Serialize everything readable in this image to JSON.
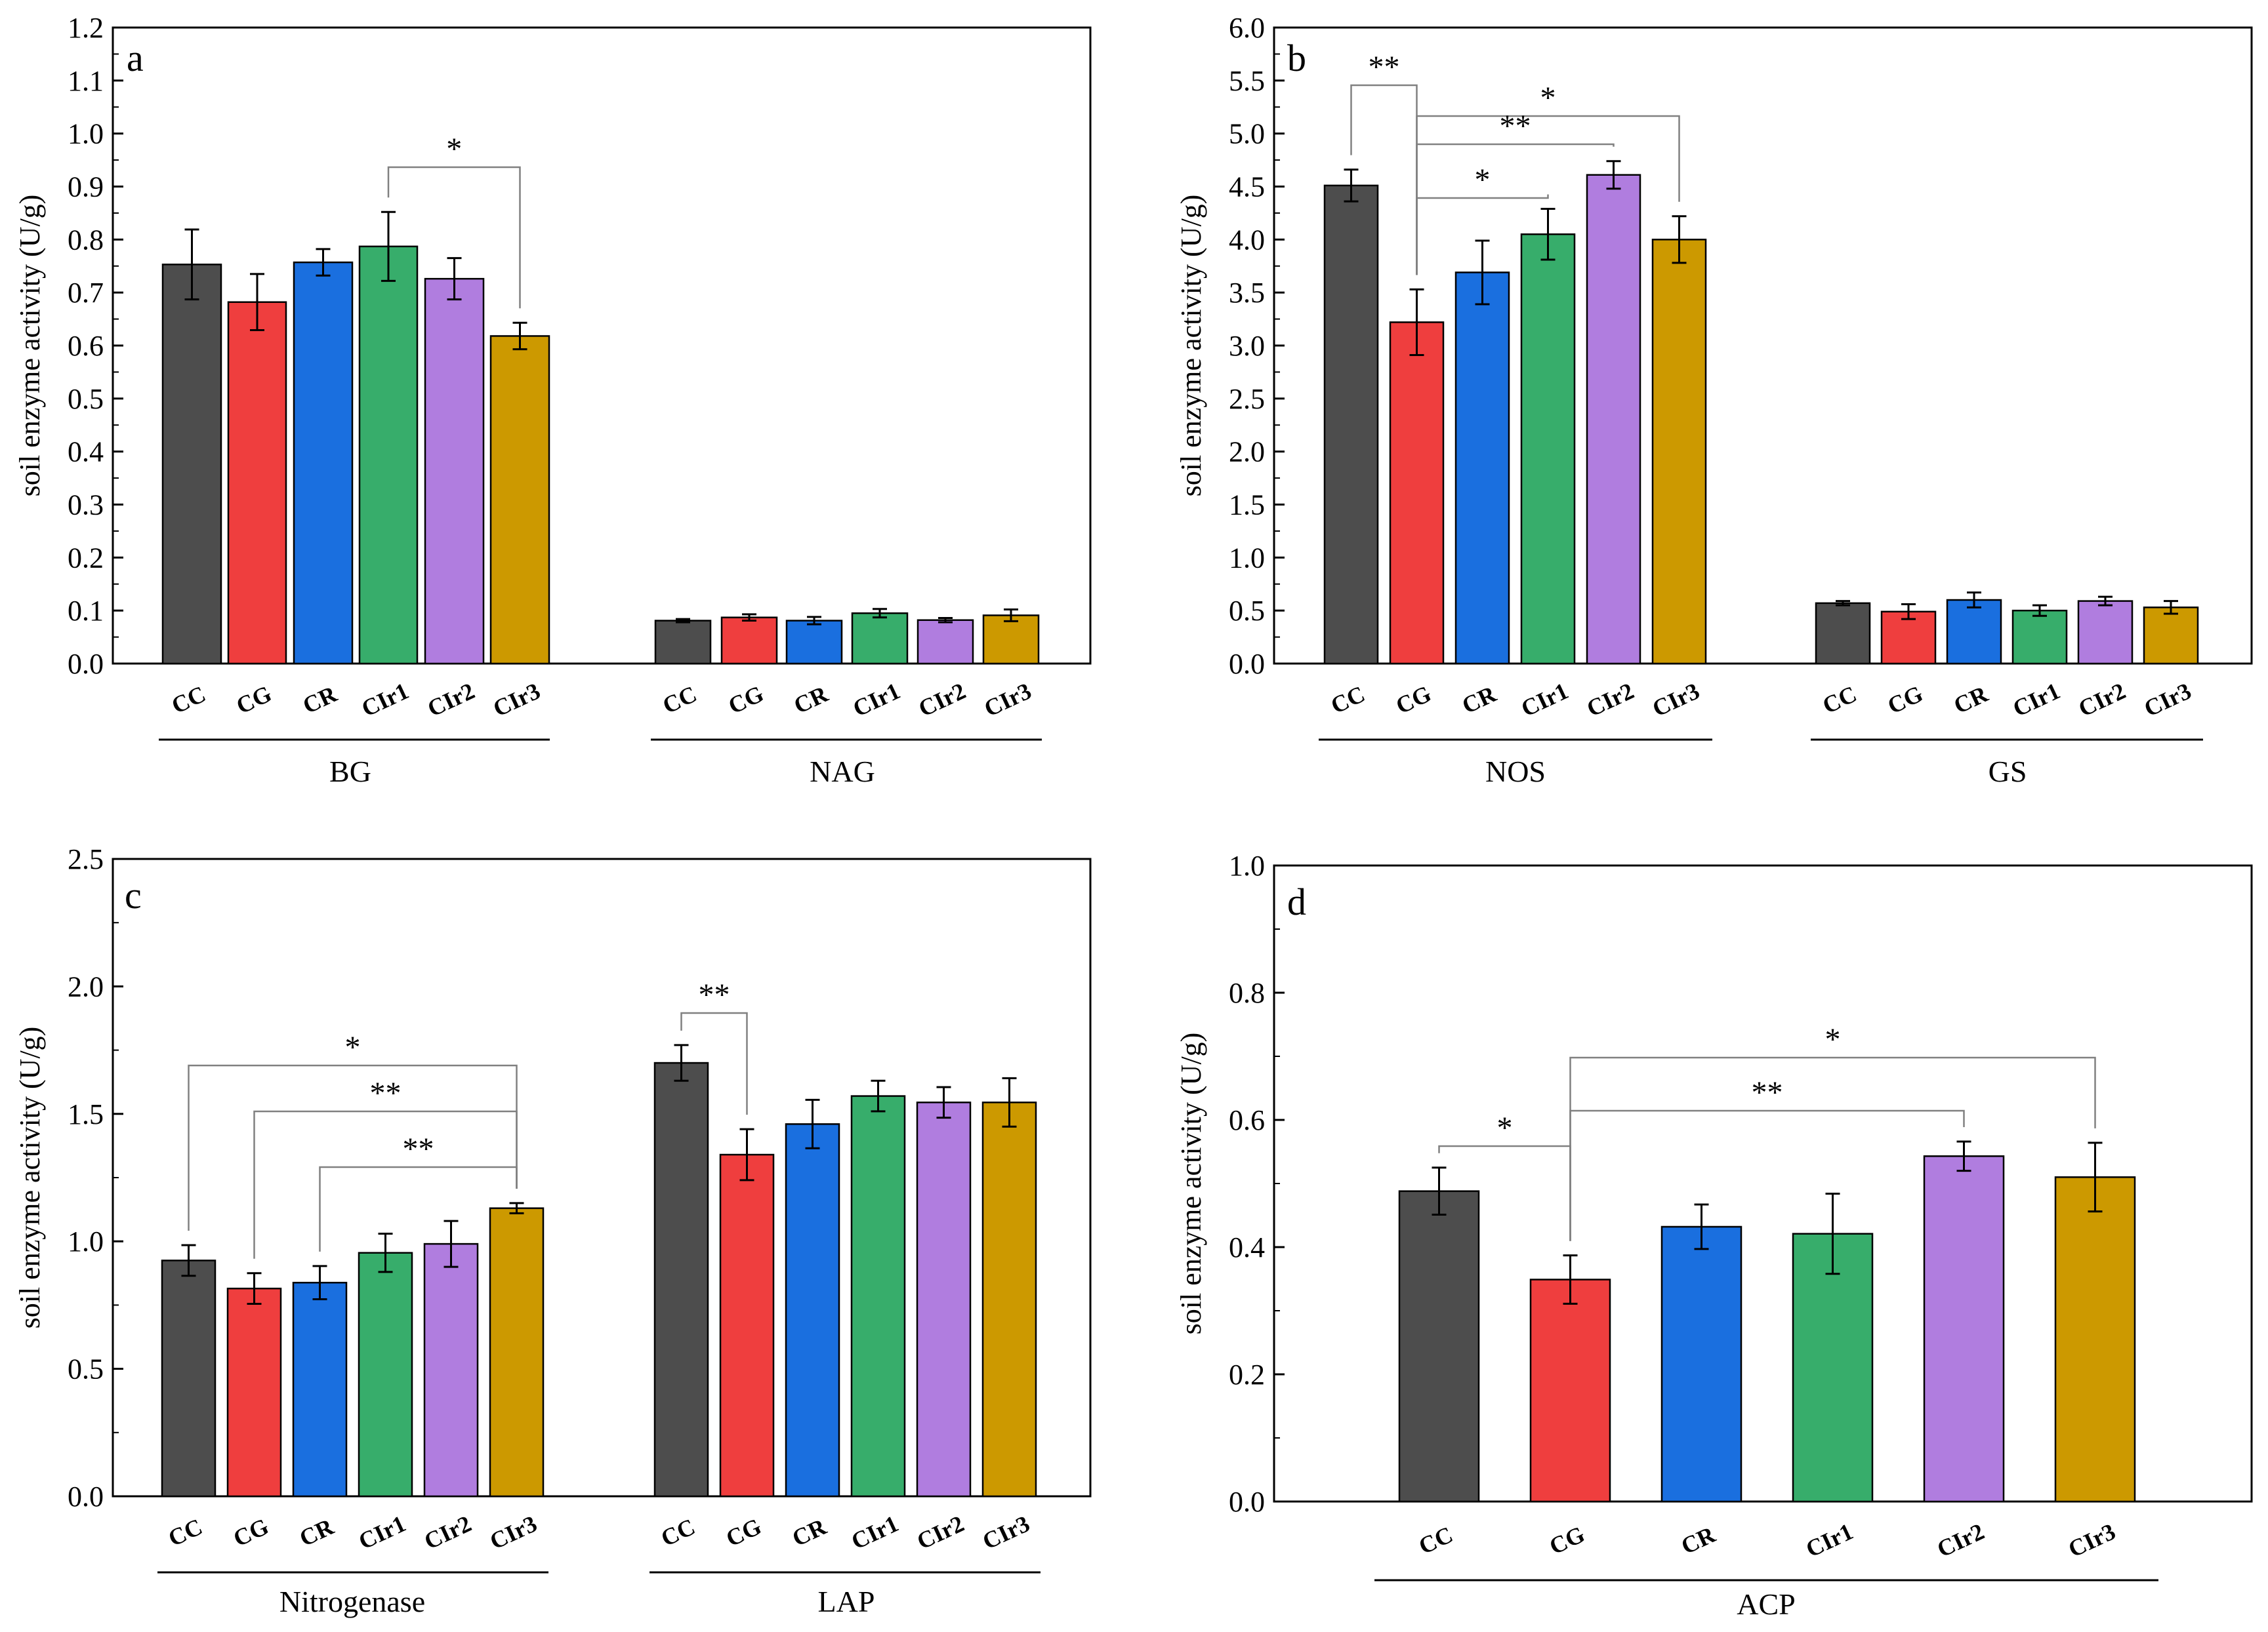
{
  "chart_data": [
    {
      "panel": "a",
      "type": "bar",
      "ylabel": "soil  enzyme activity (U/g)",
      "ylim": [
        0,
        1.2
      ],
      "yticks": [
        "0.0",
        "0.1",
        "0.2",
        "0.3",
        "0.4",
        "0.5",
        "0.6",
        "0.7",
        "0.8",
        "0.9",
        "1.0",
        "1.1",
        "1.2"
      ],
      "groups": [
        {
          "name": "BG",
          "categories": [
            "CC",
            "CG",
            "CR",
            "CIr1",
            "CIr2",
            "CIr3"
          ],
          "values": [
            0.753,
            0.682,
            0.757,
            0.787,
            0.726,
            0.618
          ],
          "errors": [
            0.066,
            0.053,
            0.025,
            0.065,
            0.039,
            0.025
          ]
        },
        {
          "name": "NAG",
          "categories": [
            "CC",
            "CG",
            "CR",
            "CIr1",
            "CIr2",
            "CIr3"
          ],
          "values": [
            0.081,
            0.087,
            0.081,
            0.095,
            0.082,
            0.091
          ],
          "errors": [
            0.003,
            0.006,
            0.007,
            0.008,
            0.004,
            0.011
          ]
        }
      ],
      "significance": [
        {
          "group": 0,
          "from": 3,
          "to": 5,
          "label": "*"
        }
      ]
    },
    {
      "panel": "b",
      "type": "bar",
      "ylabel": "soil  enzyme activity (U/g)",
      "ylim": [
        0,
        6.0
      ],
      "yticks": [
        "0.0",
        "0.5",
        "1.0",
        "1.5",
        "2.0",
        "2.5",
        "3.0",
        "3.5",
        "4.0",
        "4.5",
        "5.0",
        "5.5",
        "6.0"
      ],
      "groups": [
        {
          "name": "NOS",
          "categories": [
            "CC",
            "CG",
            "CR",
            "CIr1",
            "CIr2",
            "CIr3"
          ],
          "values": [
            4.51,
            3.22,
            3.69,
            4.05,
            4.61,
            4.0
          ],
          "errors": [
            0.15,
            0.31,
            0.3,
            0.24,
            0.13,
            0.22
          ]
        },
        {
          "name": "GS",
          "categories": [
            "CC",
            "CG",
            "CR",
            "CIr1",
            "CIr2",
            "CIr3"
          ],
          "values": [
            0.57,
            0.49,
            0.6,
            0.5,
            0.59,
            0.53
          ],
          "errors": [
            0.02,
            0.07,
            0.07,
            0.05,
            0.04,
            0.06
          ]
        }
      ],
      "significance": [
        {
          "group": 0,
          "from": 0,
          "to": 1,
          "label": "**"
        },
        {
          "group": 0,
          "from": 1,
          "to": 5,
          "label": "*"
        },
        {
          "group": 0,
          "from": 1,
          "to": 4,
          "label": "**"
        },
        {
          "group": 0,
          "from": 1,
          "to": 3,
          "label": "*"
        }
      ]
    },
    {
      "panel": "c",
      "type": "bar",
      "ylabel": "soil  enzyme activity (U/g)",
      "ylim": [
        0,
        2.5
      ],
      "yticks": [
        "0.0",
        "0.5",
        "1.0",
        "1.5",
        "2.0",
        "2.5"
      ],
      "groups": [
        {
          "name": "Nitrogenase",
          "categories": [
            "CC",
            "CG",
            "CR",
            "CIr1",
            "CIr2",
            "CIr3"
          ],
          "values": [
            0.925,
            0.815,
            0.838,
            0.955,
            0.99,
            1.13
          ],
          "errors": [
            0.06,
            0.06,
            0.065,
            0.075,
            0.09,
            0.02
          ]
        },
        {
          "name": "LAP",
          "categories": [
            "CC",
            "CG",
            "CR",
            "CIr1",
            "CIr2",
            "CIr3"
          ],
          "values": [
            1.7,
            1.34,
            1.46,
            1.57,
            1.545,
            1.545
          ],
          "errors": [
            0.07,
            0.1,
            0.095,
            0.06,
            0.06,
            0.095
          ]
        }
      ],
      "significance": [
        {
          "group": 0,
          "from": 0,
          "to": 5,
          "label": "*"
        },
        {
          "group": 0,
          "from": 1,
          "to": 5,
          "label": "**"
        },
        {
          "group": 0,
          "from": 2,
          "to": 5,
          "label": "**"
        },
        {
          "group": 1,
          "from": 0,
          "to": 1,
          "label": "**"
        }
      ]
    },
    {
      "panel": "d",
      "type": "bar",
      "ylabel": "soil  enzyme activity (U/g)",
      "ylim": [
        0,
        1.0
      ],
      "yticks": [
        "0.0",
        "0.2",
        "0.4",
        "0.6",
        "0.8",
        "1.0"
      ],
      "groups": [
        {
          "name": "ACP",
          "categories": [
            "CC",
            "CG",
            "CR",
            "CIr1",
            "CIr2",
            "CIr3"
          ],
          "values": [
            0.488,
            0.349,
            0.432,
            0.421,
            0.543,
            0.51
          ],
          "errors": [
            0.037,
            0.038,
            0.035,
            0.063,
            0.023,
            0.054
          ]
        }
      ],
      "significance": [
        {
          "group": 0,
          "from": 0,
          "to": 1,
          "label": "*"
        },
        {
          "group": 0,
          "from": 1,
          "to": 5,
          "label": "*"
        },
        {
          "group": 0,
          "from": 1,
          "to": 4,
          "label": "**"
        }
      ]
    }
  ],
  "colors": [
    "#4d4d4d",
    "#ef3e3e",
    "#1a6fdf",
    "#37ad6b",
    "#b07ddf",
    "#cc9900"
  ]
}
